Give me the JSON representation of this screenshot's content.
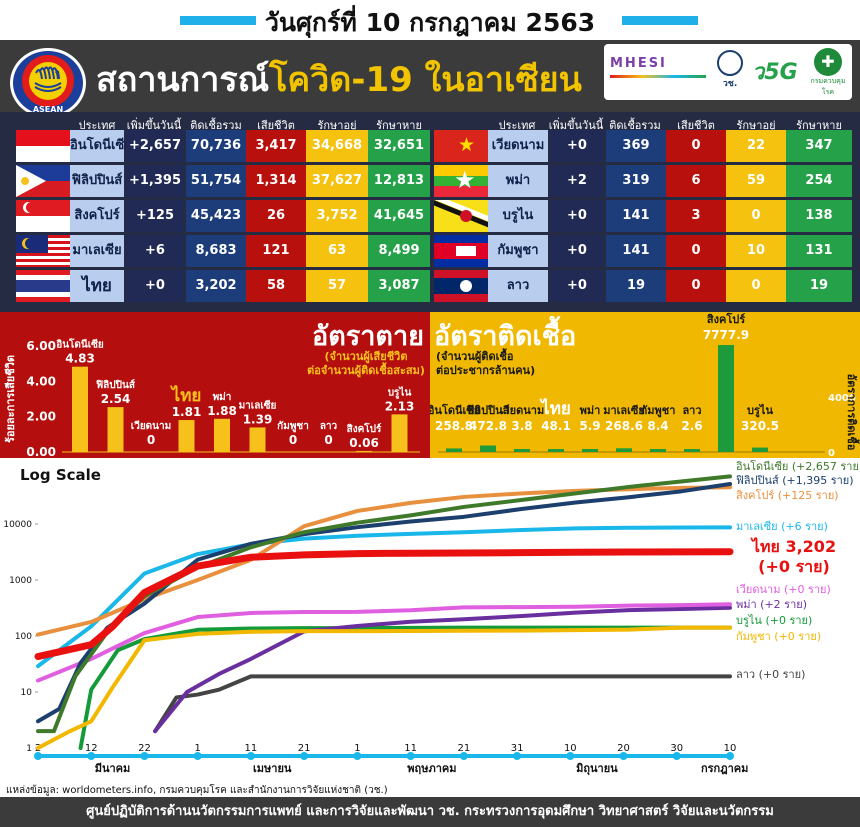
{
  "date_title": "วันศุกร์ที่ 10 กรกฎาคม 2563",
  "header": {
    "title_a": "สถานการณ์",
    "title_b": "โควิด-19 ในอาเซียน",
    "logo_text": "ASEAN",
    "partners": [
      "MHESI",
      "วช.",
      "ว5G",
      "กรมควบคุมโรค"
    ]
  },
  "table": {
    "headers": [
      "ประเทศ",
      "เพิ่มขึ้นวันนี้",
      "ติดเชื้อรวม",
      "เสียชีวิต",
      "รักษาอยู่",
      "รักษาหาย"
    ],
    "left": [
      {
        "country": "อินโดนีเซีย",
        "inc": "+2,657",
        "total": "70,736",
        "dead": "3,417",
        "treat": "34,668",
        "rec": "32,651"
      },
      {
        "country": "ฟิลิปปินส์",
        "inc": "+1,395",
        "total": "51,754",
        "dead": "1,314",
        "treat": "37,627",
        "rec": "12,813"
      },
      {
        "country": "สิงคโปร์",
        "inc": "+125",
        "total": "45,423",
        "dead": "26",
        "treat": "3,752",
        "rec": "41,645"
      },
      {
        "country": "มาเลเซีย",
        "inc": "+6",
        "total": "8,683",
        "dead": "121",
        "treat": "63",
        "rec": "8,499"
      },
      {
        "country": "ไทย",
        "inc": "+0",
        "total": "3,202",
        "dead": "58",
        "treat": "57",
        "rec": "3,087"
      }
    ],
    "right": [
      {
        "country": "เวียดนาม",
        "inc": "+0",
        "total": "369",
        "dead": "0",
        "treat": "22",
        "rec": "347"
      },
      {
        "country": "พม่า",
        "inc": "+2",
        "total": "319",
        "dead": "6",
        "treat": "59",
        "rec": "254"
      },
      {
        "country": "บรูไน",
        "inc": "+0",
        "total": "141",
        "dead": "3",
        "treat": "0",
        "rec": "138"
      },
      {
        "country": "กัมพูชา",
        "inc": "+0",
        "total": "141",
        "dead": "0",
        "treat": "10",
        "rec": "131"
      },
      {
        "country": "ลาว",
        "inc": "+0",
        "total": "19",
        "dead": "0",
        "treat": "0",
        "rec": "19"
      }
    ]
  },
  "death_rate": {
    "title": "อัตราตาย",
    "sub1": "(จำนวนผู้เสียชีวิต",
    "sub2": "ต่อจำนวนผู้ติดเชื้อสะสม)",
    "ylabel": "ร้อยละการเสียชีวิต",
    "ticks": [
      "0.00",
      "2.00",
      "4.00",
      "6.00"
    ]
  },
  "infection_rate": {
    "title": "อัตราติดเชื้อ",
    "sub1": "(จำนวนผู้ติดเชื้อ",
    "sub2": "ต่อประชากรล้านคน)",
    "ylabel": "อัตราการติดเชื้อ",
    "ticks": [
      "0",
      "4000"
    ]
  },
  "log_chart": {
    "title": "Log Scale",
    "yticks": [
      "1",
      "10",
      "100",
      "1000",
      "10000"
    ],
    "xticks": [
      "2",
      "12",
      "22",
      "1",
      "11",
      "21",
      "1",
      "11",
      "21",
      "31",
      "10",
      "20",
      "30",
      "10"
    ],
    "months": [
      "มีนาคม",
      "เมษายน",
      "พฤษภาคม",
      "มิถุนายน",
      "กรกฎาคม"
    ],
    "labels": [
      {
        "text": "อินโดนีเซีย (+2,657 ราย)",
        "color": "#3f7a2a"
      },
      {
        "text": "ฟิลิปปินส์ (+1,395 ราย)",
        "color": "#1c3f6e"
      },
      {
        "text": "สิงคโปร์ (+125 ราย)",
        "color": "#e8903e"
      },
      {
        "text": "มาเลเซีย (+6 ราย)",
        "color": "#1ab7ea"
      },
      {
        "text": "ไทย 3,202",
        "color": "#e8110f"
      },
      {
        "text": "(+0 ราย)",
        "color": "#e8110f"
      },
      {
        "text": "เวียดนาม (+0 ราย)",
        "color": "#e05ee0"
      },
      {
        "text": "พม่า (+2 ราย)",
        "color": "#6a2f9e"
      },
      {
        "text": "บรูไน (+0 ราย)",
        "color": "#159a3a"
      },
      {
        "text": "กัมพูชา (+0 ราย)",
        "color": "#f2b800"
      },
      {
        "text": "ลาว (+0 ราย)",
        "color": "#444444"
      }
    ]
  },
  "source": "แหล่งข้อมูล: worldometers.info, กรมควบคุมโรค และสำนักงานการวิจัยแห่งชาติ (วช.)",
  "footer": "ศูนย์ปฏิบัติการด้านนวัตกรรมการแพทย์ และการวิจัยและพัฒนา  วช.   กระทรวงการอุดมศึกษา วิทยาศาสตร์ วิจัยและนวัตกรรม",
  "chart_data": [
    {
      "type": "bar",
      "title": "อัตราตาย",
      "ylabel": "ร้อยละการเสียชีวิต",
      "ylim": [
        0,
        6
      ],
      "categories": [
        "อินโดนีเซีย",
        "ฟิลิปปินส์",
        "เวียดนาม",
        "ไทย",
        "พม่า",
        "มาเลเซีย",
        "กัมพูชา",
        "ลาว",
        "สิงคโปร์",
        "บรูไน"
      ],
      "values": [
        4.83,
        2.54,
        0,
        1.81,
        1.88,
        1.39,
        0,
        0,
        0.06,
        2.13
      ],
      "color": "#f5c11a"
    },
    {
      "type": "bar",
      "title": "อัตราติดเชื้อ",
      "ylabel": "อัตราการติดเชื้อ",
      "ylim": [
        0,
        8000
      ],
      "categories": [
        "อินโดนีเซีย",
        "ฟิลิปปินส์",
        "เวียดนาม",
        "ไทย",
        "พม่า",
        "มาเลเซีย",
        "กัมพูชา",
        "ลาว",
        "สิงคโปร์",
        "บรูไน"
      ],
      "values": [
        258.8,
        472.8,
        3.8,
        48.1,
        5.9,
        268.6,
        8.4,
        2.6,
        7777.9,
        320.5
      ],
      "color": "#1e9a3a"
    },
    {
      "type": "line",
      "title": "Log Scale",
      "yscale": "log",
      "ylim": [
        1,
        100000
      ],
      "x": [
        "2020-03-02",
        "2020-07-10"
      ],
      "series": [
        {
          "name": "อินโดนีเซีย",
          "color": "#3f7a2a",
          "points": [
            [
              "2020-03-02",
              2
            ],
            [
              "2020-03-05",
              2
            ],
            [
              "2020-03-09",
              19
            ],
            [
              "2020-03-15",
              117
            ],
            [
              "2020-03-22",
              514
            ],
            [
              "2020-04-01",
              1677
            ],
            [
              "2020-04-11",
              3842
            ],
            [
              "2020-04-21",
              7135
            ],
            [
              "2020-05-01",
              10551
            ],
            [
              "2020-05-11",
              14265
            ],
            [
              "2020-05-21",
              20162
            ],
            [
              "2020-06-01",
              26940
            ],
            [
              "2020-06-11",
              35295
            ],
            [
              "2020-06-21",
              45891
            ],
            [
              "2020-07-01",
              57770
            ],
            [
              "2020-07-10",
              70736
            ]
          ]
        },
        {
          "name": "ฟิลิปปินส์",
          "color": "#1c3f6e",
          "points": [
            [
              "2020-03-02",
              3
            ],
            [
              "2020-03-06",
              5
            ],
            [
              "2020-03-10",
              33
            ],
            [
              "2020-03-15",
              140
            ],
            [
              "2020-03-22",
              380
            ],
            [
              "2020-04-01",
              2311
            ],
            [
              "2020-04-11",
              4428
            ],
            [
              "2020-04-21",
              6599
            ],
            [
              "2020-05-01",
              8772
            ],
            [
              "2020-05-11",
              11086
            ],
            [
              "2020-05-21",
              13434
            ],
            [
              "2020-06-01",
              18638
            ],
            [
              "2020-06-11",
              24175
            ],
            [
              "2020-06-21",
              30052
            ],
            [
              "2020-07-01",
              38511
            ],
            [
              "2020-07-10",
              51754
            ]
          ]
        },
        {
          "name": "สิงคโปร์",
          "color": "#e8903e",
          "points": [
            [
              "2020-03-02",
              106
            ],
            [
              "2020-03-12",
              178
            ],
            [
              "2020-03-22",
              455
            ],
            [
              "2020-04-01",
              1000
            ],
            [
              "2020-04-11",
              2299
            ],
            [
              "2020-04-21",
              9125
            ],
            [
              "2020-05-01",
              17101
            ],
            [
              "2020-05-11",
              23822
            ],
            [
              "2020-05-21",
              30426
            ],
            [
              "2020-06-01",
              35292
            ],
            [
              "2020-06-11",
              38965
            ],
            [
              "2020-06-21",
              41833
            ],
            [
              "2020-07-01",
              44122
            ],
            [
              "2020-07-10",
              45423
            ]
          ]
        },
        {
          "name": "มาเลเซีย",
          "color": "#1ab7ea",
          "points": [
            [
              "2020-03-02",
              29
            ],
            [
              "2020-03-12",
              149
            ],
            [
              "2020-03-22",
              1306
            ],
            [
              "2020-04-01",
              2908
            ],
            [
              "2020-04-11",
              4346
            ],
            [
              "2020-04-21",
              5482
            ],
            [
              "2020-05-01",
              6176
            ],
            [
              "2020-05-11",
              6656
            ],
            [
              "2020-05-21",
              7137
            ],
            [
              "2020-06-01",
              7819
            ],
            [
              "2020-06-11",
              8369
            ],
            [
              "2020-06-21",
              8572
            ],
            [
              "2020-07-01",
              8640
            ],
            [
              "2020-07-10",
              8683
            ]
          ]
        },
        {
          "name": "ไทย",
          "color": "#e8110f",
          "points": [
            [
              "2020-03-02",
              43
            ],
            [
              "2020-03-12",
              70
            ],
            [
              "2020-03-16",
              147
            ],
            [
              "2020-03-22",
              599
            ],
            [
              "2020-04-01",
              1771
            ],
            [
              "2020-04-11",
              2551
            ],
            [
              "2020-04-21",
              2811
            ],
            [
              "2020-05-01",
              2960
            ],
            [
              "2020-05-11",
              3009
            ],
            [
              "2020-05-21",
              3037
            ],
            [
              "2020-06-01",
              3082
            ],
            [
              "2020-06-11",
              3125
            ],
            [
              "2020-06-21",
              3156
            ],
            [
              "2020-07-01",
              3179
            ],
            [
              "2020-07-10",
              3202
            ]
          ]
        },
        {
          "name": "เวียดนาม",
          "color": "#e05ee0",
          "points": [
            [
              "2020-03-02",
              16
            ],
            [
              "2020-03-12",
              39
            ],
            [
              "2020-03-22",
              113
            ],
            [
              "2020-04-01",
              218
            ],
            [
              "2020-04-11",
              258
            ],
            [
              "2020-04-21",
              268
            ],
            [
              "2020-05-01",
              270
            ],
            [
              "2020-05-11",
              288
            ],
            [
              "2020-05-21",
              324
            ],
            [
              "2020-06-01",
              328
            ],
            [
              "2020-06-11",
              333
            ],
            [
              "2020-06-21",
              349
            ],
            [
              "2020-07-01",
              355
            ],
            [
              "2020-07-10",
              369
            ]
          ]
        },
        {
          "name": "พม่า",
          "color": "#6a2f9e",
          "points": [
            [
              "2020-03-24",
              2
            ],
            [
              "2020-03-30",
              10
            ],
            [
              "2020-04-05",
              21
            ],
            [
              "2020-04-11",
              39
            ],
            [
              "2020-04-21",
              121
            ],
            [
              "2020-05-01",
              151
            ],
            [
              "2020-05-11",
              180
            ],
            [
              "2020-05-21",
              199
            ],
            [
              "2020-06-01",
              228
            ],
            [
              "2020-06-11",
              262
            ],
            [
              "2020-06-21",
              290
            ],
            [
              "2020-07-01",
              303
            ],
            [
              "2020-07-10",
              319
            ]
          ]
        },
        {
          "name": "บรูไน",
          "color": "#159a3a",
          "points": [
            [
              "2020-03-10",
              1
            ],
            [
              "2020-03-12",
              11
            ],
            [
              "2020-03-17",
              56
            ],
            [
              "2020-03-22",
              88
            ],
            [
              "2020-04-01",
              129
            ],
            [
              "2020-04-11",
              136
            ],
            [
              "2020-04-21",
              138
            ],
            [
              "2020-05-01",
              138
            ],
            [
              "2020-05-21",
              141
            ],
            [
              "2020-06-21",
              141
            ],
            [
              "2020-07-10",
              141
            ]
          ]
        },
        {
          "name": "กัมพูชา",
          "color": "#f2b800",
          "points": [
            [
              "2020-03-02",
              1
            ],
            [
              "2020-03-08",
              2
            ],
            [
              "2020-03-12",
              3
            ],
            [
              "2020-03-16",
              12
            ],
            [
              "2020-03-22",
              84
            ],
            [
              "2020-04-01",
              109
            ],
            [
              "2020-04-11",
              119
            ],
            [
              "2020-04-21",
              122
            ],
            [
              "2020-05-01",
              122
            ],
            [
              "2020-05-21",
              124
            ],
            [
              "2020-06-01",
              125
            ],
            [
              "2020-06-21",
              130
            ],
            [
              "2020-07-01",
              141
            ],
            [
              "2020-07-10",
              141
            ]
          ]
        },
        {
          "name": "ลาว",
          "color": "#444444",
          "points": [
            [
              "2020-03-24",
              2
            ],
            [
              "2020-03-28",
              8
            ],
            [
              "2020-04-01",
              9
            ],
            [
              "2020-04-05",
              11
            ],
            [
              "2020-04-11",
              19
            ],
            [
              "2020-05-01",
              19
            ],
            [
              "2020-06-01",
              19
            ],
            [
              "2020-07-10",
              19
            ]
          ]
        }
      ]
    }
  ]
}
